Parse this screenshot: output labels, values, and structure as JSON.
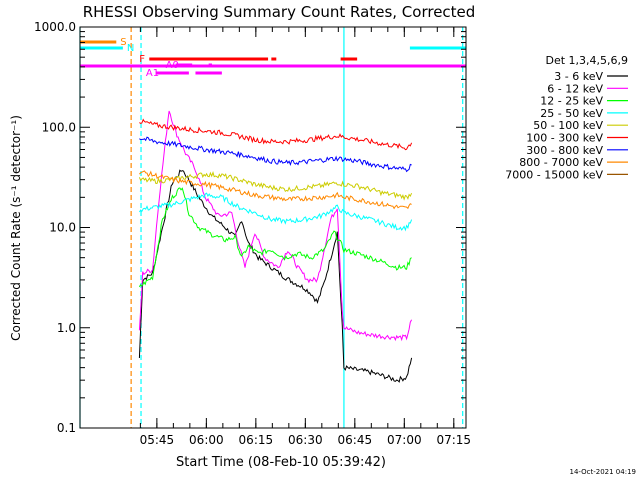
{
  "chart_data": {
    "type": "line",
    "title": "RHESSI Observing Summary Count Rates, Corrected",
    "xlabel": "Start Time (08-Feb-10 05:39:42)",
    "ylabel": "Corrected Count Rate (s⁻¹ detector⁻¹)",
    "yscale": "log",
    "xlim": [
      -18,
      99
    ],
    "ylim": [
      0.1,
      1000
    ],
    "x_ticks": [
      {
        "t": 5.3,
        "label": "05:45"
      },
      {
        "t": 20.3,
        "label": "06:00"
      },
      {
        "t": 35.3,
        "label": "06:15"
      },
      {
        "t": 50.3,
        "label": "06:30"
      },
      {
        "t": 65.3,
        "label": "06:45"
      },
      {
        "t": 80.3,
        "label": "07:00"
      },
      {
        "t": 95.3,
        "label": "07:15"
      }
    ],
    "y_ticks": [
      {
        "v": 0.1,
        "label": "0.1"
      },
      {
        "v": 1,
        "label": "1.0"
      },
      {
        "v": 10,
        "label": "10.0"
      },
      {
        "v": 100,
        "label": "100.0"
      },
      {
        "v": 1000,
        "label": "1000.0"
      }
    ],
    "legend_title": "Det 1,3,4,5,6,9",
    "legend_position": "right",
    "grid": false,
    "series": [
      {
        "name": "3 - 6 keV",
        "color": "#000000",
        "points": [
          [
            0,
            0.5
          ],
          [
            1,
            3
          ],
          [
            4,
            3.5
          ],
          [
            7,
            10
          ],
          [
            10,
            28
          ],
          [
            13,
            38
          ],
          [
            15,
            30
          ],
          [
            18,
            20
          ],
          [
            22,
            13
          ],
          [
            26,
            10
          ],
          [
            29,
            8
          ],
          [
            31,
            12
          ],
          [
            33,
            7
          ],
          [
            36,
            5
          ],
          [
            40,
            4
          ],
          [
            44,
            3.2
          ],
          [
            47,
            2.8
          ],
          [
            50,
            2.5
          ],
          [
            52,
            2.2
          ],
          [
            54,
            1.8
          ],
          [
            56,
            2.8
          ],
          [
            58,
            5
          ],
          [
            60,
            9
          ],
          [
            61.5,
            1
          ],
          [
            62,
            0.4
          ],
          [
            66,
            0.38
          ],
          [
            70,
            0.36
          ],
          [
            74,
            0.33
          ],
          [
            78,
            0.3
          ],
          [
            81,
            0.32
          ],
          [
            82.5,
            0.5
          ]
        ]
      },
      {
        "name": "6 - 12 keV",
        "color": "#ff00ff",
        "points": [
          [
            0,
            0.9
          ],
          [
            1,
            3.5
          ],
          [
            4,
            3.8
          ],
          [
            6,
            20
          ],
          [
            9,
            150
          ],
          [
            11,
            90
          ],
          [
            14,
            55
          ],
          [
            17,
            38
          ],
          [
            20,
            20
          ],
          [
            24,
            13
          ],
          [
            28,
            14
          ],
          [
            30,
            7
          ],
          [
            32,
            4
          ],
          [
            35,
            9
          ],
          [
            38,
            5
          ],
          [
            42,
            4
          ],
          [
            45,
            6
          ],
          [
            48,
            4
          ],
          [
            51,
            3
          ],
          [
            54,
            3
          ],
          [
            56,
            6
          ],
          [
            58,
            12
          ],
          [
            60,
            16
          ],
          [
            61.5,
            1.5
          ],
          [
            62,
            1
          ],
          [
            66,
            0.9
          ],
          [
            70,
            0.85
          ],
          [
            74,
            0.82
          ],
          [
            78,
            0.8
          ],
          [
            81,
            0.8
          ],
          [
            82.5,
            1.2
          ]
        ]
      },
      {
        "name": "12 - 25 keV",
        "color": "#00ff00",
        "points": [
          [
            0,
            2.5
          ],
          [
            1,
            2.7
          ],
          [
            4,
            3.2
          ],
          [
            7,
            12
          ],
          [
            10,
            20
          ],
          [
            13,
            26
          ],
          [
            15,
            14
          ],
          [
            18,
            10
          ],
          [
            22,
            8.5
          ],
          [
            26,
            7.5
          ],
          [
            29,
            8
          ],
          [
            31,
            5
          ],
          [
            33,
            6.5
          ],
          [
            36,
            5.5
          ],
          [
            40,
            6
          ],
          [
            44,
            5
          ],
          [
            48,
            5.5
          ],
          [
            52,
            5
          ],
          [
            56,
            6
          ],
          [
            59,
            9
          ],
          [
            61,
            7
          ],
          [
            62,
            6
          ],
          [
            66,
            5.5
          ],
          [
            70,
            5
          ],
          [
            74,
            4.5
          ],
          [
            78,
            4
          ],
          [
            81,
            4
          ],
          [
            82.5,
            5
          ]
        ]
      },
      {
        "name": "25 - 50 keV",
        "color": "#00ffff",
        "points": [
          [
            0,
            15
          ],
          [
            5,
            16
          ],
          [
            10,
            17
          ],
          [
            15,
            19
          ],
          [
            20,
            21
          ],
          [
            25,
            20
          ],
          [
            30,
            16
          ],
          [
            35,
            14
          ],
          [
            40,
            12
          ],
          [
            45,
            11.5
          ],
          [
            50,
            12
          ],
          [
            55,
            13
          ],
          [
            60,
            16
          ],
          [
            62,
            14
          ],
          [
            66,
            13
          ],
          [
            70,
            12
          ],
          [
            74,
            11
          ],
          [
            78,
            10
          ],
          [
            81,
            10
          ],
          [
            82.5,
            12
          ]
        ]
      },
      {
        "name": "50 - 100 keV",
        "color": "#cccc00",
        "points": [
          [
            0,
            30
          ],
          [
            5,
            29
          ],
          [
            10,
            30
          ],
          [
            15,
            32
          ],
          [
            20,
            34
          ],
          [
            25,
            33
          ],
          [
            30,
            30
          ],
          [
            35,
            27
          ],
          [
            40,
            25
          ],
          [
            45,
            24
          ],
          [
            50,
            25
          ],
          [
            55,
            26
          ],
          [
            60,
            28
          ],
          [
            62,
            27
          ],
          [
            66,
            26
          ],
          [
            70,
            24
          ],
          [
            74,
            22
          ],
          [
            78,
            21
          ],
          [
            81,
            20
          ],
          [
            82.5,
            22
          ]
        ]
      },
      {
        "name": "100 - 300 keV",
        "color": "#ff0000",
        "points": [
          [
            0,
            115
          ],
          [
            5,
            105
          ],
          [
            10,
            100
          ],
          [
            15,
            95
          ],
          [
            20,
            92
          ],
          [
            25,
            88
          ],
          [
            30,
            82
          ],
          [
            35,
            75
          ],
          [
            40,
            72
          ],
          [
            45,
            72
          ],
          [
            50,
            74
          ],
          [
            55,
            78
          ],
          [
            60,
            82
          ],
          [
            62,
            80
          ],
          [
            66,
            76
          ],
          [
            70,
            72
          ],
          [
            74,
            68
          ],
          [
            78,
            65
          ],
          [
            81,
            62
          ],
          [
            82.5,
            70
          ]
        ]
      },
      {
        "name": "300 - 800 keV",
        "color": "#0000ff",
        "points": [
          [
            0,
            78
          ],
          [
            5,
            72
          ],
          [
            10,
            68
          ],
          [
            15,
            64
          ],
          [
            20,
            60
          ],
          [
            25,
            57
          ],
          [
            30,
            54
          ],
          [
            35,
            50
          ],
          [
            40,
            46
          ],
          [
            45,
            44
          ],
          [
            50,
            45
          ],
          [
            55,
            47
          ],
          [
            60,
            49
          ],
          [
            62,
            48
          ],
          [
            66,
            46
          ],
          [
            70,
            43
          ],
          [
            74,
            41
          ],
          [
            78,
            39
          ],
          [
            81,
            38
          ],
          [
            82.5,
            42
          ]
        ]
      },
      {
        "name": "800 - 7000 keV",
        "color": "#ff8800",
        "points": [
          [
            0,
            36
          ],
          [
            5,
            33
          ],
          [
            10,
            30
          ],
          [
            15,
            28
          ],
          [
            20,
            27
          ],
          [
            25,
            25
          ],
          [
            30,
            23
          ],
          [
            35,
            21
          ],
          [
            40,
            20
          ],
          [
            45,
            19
          ],
          [
            50,
            19.5
          ],
          [
            55,
            20
          ],
          [
            60,
            21
          ],
          [
            62,
            20
          ],
          [
            66,
            19
          ],
          [
            70,
            18
          ],
          [
            74,
            17
          ],
          [
            78,
            16
          ],
          [
            81,
            15.5
          ],
          [
            82.5,
            17
          ]
        ]
      },
      {
        "name": "7000 - 15000 keV",
        "color": "#995500",
        "points": []
      }
    ],
    "flag_bars": [
      {
        "label": "S",
        "color": "#ff8800",
        "segments": [
          [
            -18,
            -7
          ]
        ]
      },
      {
        "label": "N",
        "color": "#00ffff",
        "segments": [
          [
            -18,
            -5
          ],
          [
            82,
            99
          ]
        ]
      },
      {
        "label": "F",
        "color": "#ff0000",
        "segments": [
          [
            3,
            39
          ],
          [
            40,
            41.5
          ],
          [
            61,
            66
          ]
        ]
      },
      {
        "label": "A0",
        "color": "#ff00ff",
        "segments": [
          [
            11,
            16
          ],
          [
            21,
            22
          ]
        ]
      },
      {
        "label": "A1",
        "color": "#ff00ff",
        "segments": [
          [
            5,
            15
          ],
          [
            17,
            25
          ]
        ]
      },
      {
        "label": "",
        "color": "#ff00ff",
        "segments": [
          [
            -18,
            99
          ]
        ]
      }
    ],
    "vlines": [
      {
        "t": -18,
        "color": "#00ffff",
        "style": "solid"
      },
      {
        "t": -2.5,
        "color": "#ff8800",
        "style": "dashed"
      },
      {
        "t": 0.5,
        "color": "#00ffff",
        "style": "dashed"
      },
      {
        "t": 62,
        "color": "#00ffff",
        "style": "solid"
      },
      {
        "t": 98,
        "color": "#00ffff",
        "style": "dashed"
      }
    ],
    "footer_date": "14-Oct-2021 04:19"
  }
}
